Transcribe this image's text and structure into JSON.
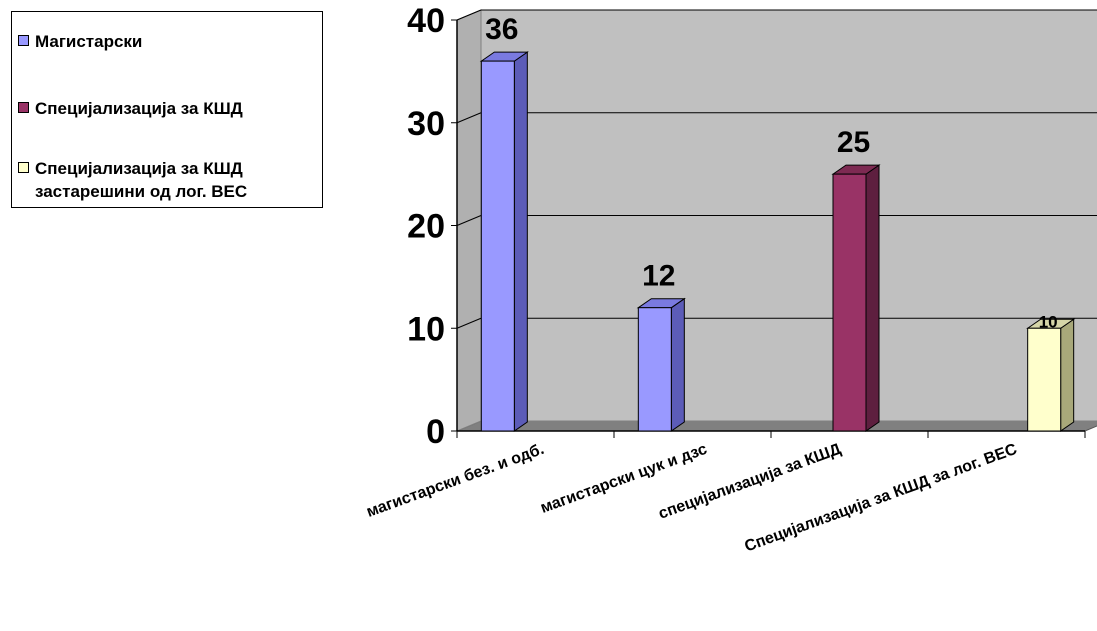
{
  "chart_data": {
    "type": "bar",
    "categories": [
      "магистарски без. и одб.",
      "магистарски  цук и дзс",
      "специјализација за КШД",
      "Специјализација за КШД за лог. ВЕС"
    ],
    "series": [
      {
        "name": "Магистарски",
        "values": [
          36,
          12,
          null,
          null
        ],
        "color": "#9999ff"
      },
      {
        "name": "Специјализација за КШД",
        "values": [
          null,
          null,
          25,
          null
        ],
        "color": "#993366"
      },
      {
        "name": "Специјализација за КШД\nзастарешини од лог. ВЕС",
        "values": [
          null,
          null,
          null,
          10
        ],
        "color": "#ffffcc"
      }
    ],
    "data_labels": [
      "36",
      "12",
      "25",
      "10"
    ],
    "yticks": [
      "0",
      "10",
      "20",
      "30",
      "40"
    ],
    "ylim": [
      0,
      40
    ],
    "grid": true,
    "legend_position": "left",
    "plot_background": "#c0c0c0"
  }
}
